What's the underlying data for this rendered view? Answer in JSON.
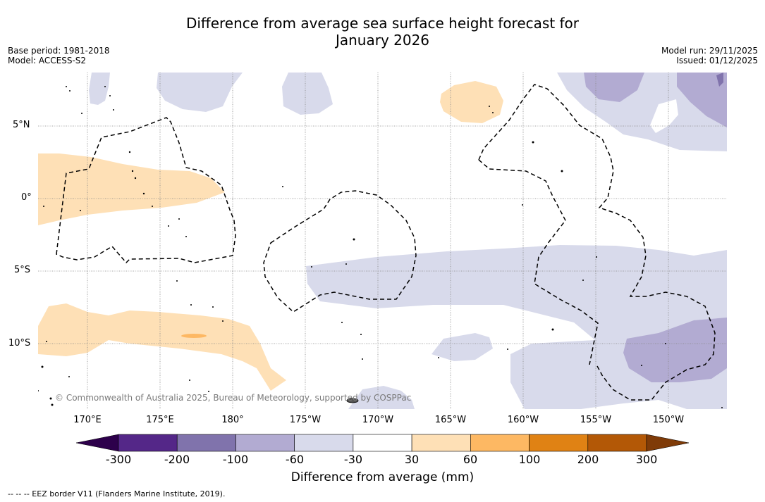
{
  "title_line1": "Difference from average sea surface height forecast for",
  "title_line2": "January 2026",
  "base_period": "Base period: 1981-2018",
  "model": "Model: ACCESS-S2",
  "model_run": "Model run: 29/11/2025",
  "issued": "Issued: 01/12/2025",
  "lat_labels": [
    "5°N",
    "0°",
    "5°S",
    "10°S"
  ],
  "lon_labels": [
    "170°E",
    "175°E",
    "180°",
    "175°W",
    "170°W",
    "165°W",
    "160°W",
    "155°W",
    "150°W"
  ],
  "copyright": "© Commonwealth of Australia 2025, Bureau of Meteorology, supported by COSPPac",
  "colorbar": {
    "label": "Difference from average (mm)",
    "ticks": [
      "-300",
      "-200",
      "-100",
      "-60",
      "-30",
      "30",
      "60",
      "100",
      "200",
      "300"
    ],
    "colors": [
      "#542788",
      "#8073ac",
      "#b2abd2",
      "#d8daeb",
      "#ffffff",
      "#fee0b6",
      "#fdb863",
      "#e08214",
      "#b35806"
    ],
    "under_color": "#2d004b",
    "over_color": "#7f3b08"
  },
  "map_colors": {
    "light_purple": "#d8daeb",
    "mid_purple": "#b2abd2",
    "dark_purple": "#8073ac",
    "light_orange": "#fee0b6",
    "mid_orange": "#fdb863"
  },
  "footnote": "--  --  -- EEZ border V11 (Flanders Marine Institute, 2019)."
}
